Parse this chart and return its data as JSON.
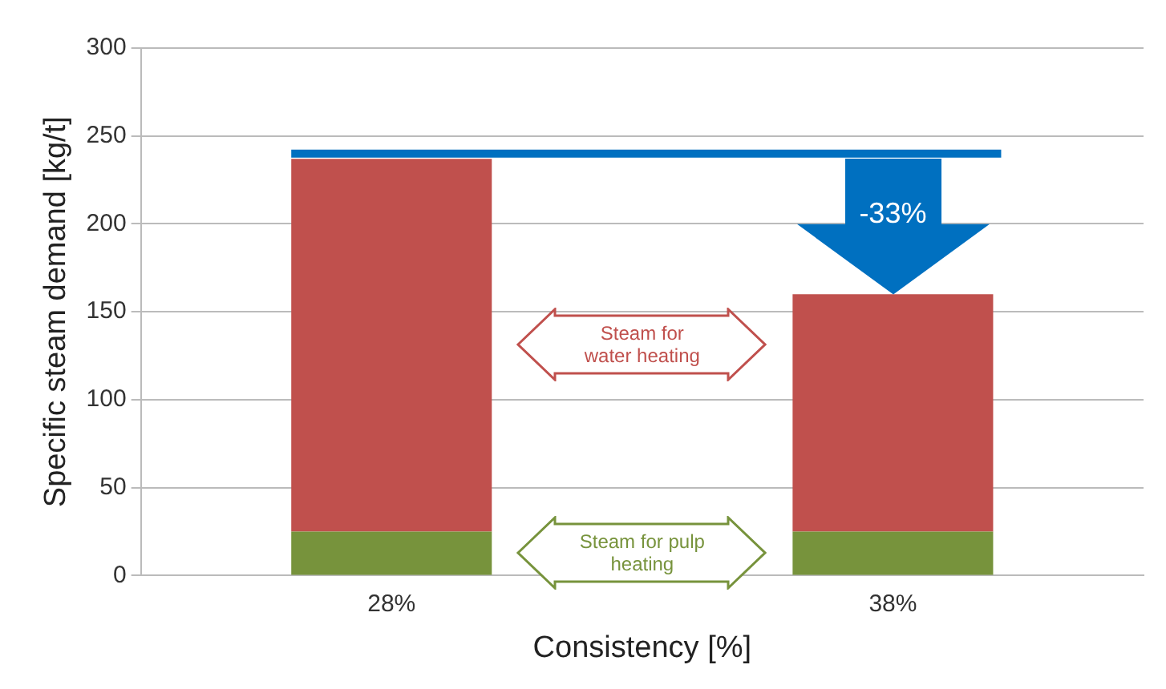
{
  "chart_data": {
    "type": "bar",
    "stacked": true,
    "xlabel": "Consistency [%]",
    "ylabel": "Specific steam demand [kg/t]",
    "categories": [
      "28%",
      "38%"
    ],
    "series": [
      {
        "name": "Steam for pulp heating",
        "color": "#77933c",
        "values": [
          25,
          25
        ]
      },
      {
        "name": "Steam for water heating",
        "color": "#c0504d",
        "values": [
          212,
          135
        ]
      }
    ],
    "ylim": [
      0,
      300
    ],
    "yticks": [
      0,
      50,
      100,
      150,
      200,
      250,
      300
    ],
    "grid": "y",
    "legend": false,
    "ref_lines": [
      {
        "axis": "y",
        "value": 240,
        "color": "#0070c0"
      }
    ],
    "annotations": [
      "-33%"
    ]
  }
}
